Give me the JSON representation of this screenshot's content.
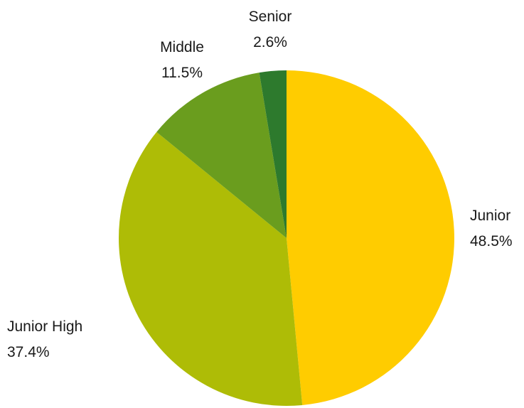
{
  "chart_data": {
    "type": "pie",
    "title": "",
    "slices": [
      {
        "label": "Junior",
        "value": 48.5,
        "value_label": "48.5%",
        "color": "#ffcc00"
      },
      {
        "label": "Junior High",
        "value": 37.4,
        "value_label": "37.4%",
        "color": "#aebc06"
      },
      {
        "label": "Middle",
        "value": 11.5,
        "value_label": "11.5%",
        "color": "#6a9d1e"
      },
      {
        "label": "Senior",
        "value": 2.6,
        "value_label": "2.6%",
        "color": "#2d7a2d"
      }
    ],
    "start_angle": "12 o'clock",
    "direction": "clockwise",
    "labels": "outside each slice (name above percentage)",
    "legend": "none"
  }
}
